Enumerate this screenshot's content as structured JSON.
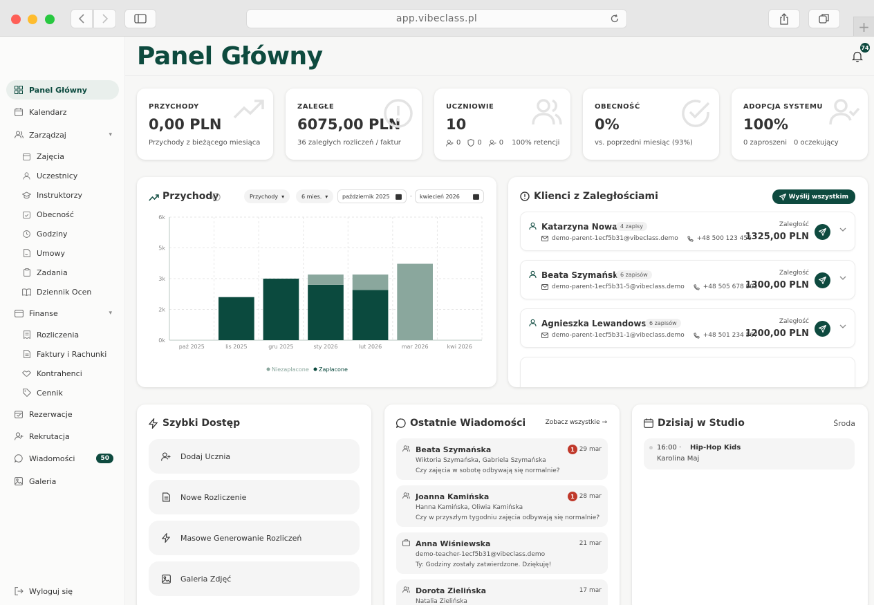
{
  "browser": {
    "url": "app.vibeclass.pl"
  },
  "sidebar": {
    "items": [
      {
        "label": "Panel Główny",
        "icon": "grid-icon"
      },
      {
        "label": "Kalendarz",
        "icon": "calendar-icon"
      },
      {
        "label": "Zarządzaj",
        "icon": "users-icon"
      },
      {
        "label": "Zajęcia",
        "icon": "calendar-icon"
      },
      {
        "label": "Uczestnicy",
        "icon": "user-icon"
      },
      {
        "label": "Instruktorzy",
        "icon": "graduation-cap-icon"
      },
      {
        "label": "Obecność",
        "icon": "calendar-check-icon"
      },
      {
        "label": "Godziny",
        "icon": "clock-icon"
      },
      {
        "label": "Umowy",
        "icon": "file-signature-icon"
      },
      {
        "label": "Zadania",
        "icon": "clipboard-icon"
      },
      {
        "label": "Dziennik Ocen",
        "icon": "book-icon"
      },
      {
        "label": "Finanse",
        "icon": "wallet-icon"
      },
      {
        "label": "Rozliczenia",
        "icon": "receipt-icon"
      },
      {
        "label": "Faktury i Rachunki",
        "icon": "file-icon"
      },
      {
        "label": "Kontrahenci",
        "icon": "handshake-icon"
      },
      {
        "label": "Cennik",
        "icon": "tag-icon"
      },
      {
        "label": "Rezerwacje",
        "icon": "calendar-icon"
      },
      {
        "label": "Rekrutacja",
        "icon": "user-plus-icon"
      },
      {
        "label": "Wiadomości",
        "icon": "message-icon",
        "badge": "50"
      },
      {
        "label": "Galeria",
        "icon": "image-icon"
      }
    ],
    "logout": "Wyloguj się"
  },
  "header": {
    "title": "Panel Główny",
    "notifications": "74"
  },
  "stats": [
    {
      "label": "PRZYCHODY",
      "value": "0,00 PLN",
      "sub": "Przychody z bieżącego miesiąca"
    },
    {
      "label": "ZALEGŁE",
      "value": "6075,00 PLN",
      "sub": "36 zaległych rozliczeń / faktur"
    },
    {
      "label": "UCZNIOWIE",
      "value": "10",
      "sub_parts": [
        "0",
        "0",
        "0",
        "100% retencji"
      ]
    },
    {
      "label": "OBECNOŚĆ",
      "value": "0%",
      "sub": "vs. poprzedni miesiąc (93%)"
    },
    {
      "label": "ADOPCJA SYSTEMU",
      "value": "100%",
      "sub_parts": [
        "0 zaproszeni",
        "0 oczekujący"
      ]
    }
  ],
  "revenue": {
    "title": "Przychody",
    "metric_select": "Przychody",
    "range_select": "6 mies.",
    "date_from": "październik 2025",
    "date_separator": "-",
    "date_to": "kwiecień 2026"
  },
  "chart_data": {
    "type": "bar",
    "stacked": true,
    "categories": [
      "paź 2025",
      "lis 2025",
      "gru 2025",
      "sty 2026",
      "lut 2026",
      "mar 2026",
      "kwi 2026"
    ],
    "series": [
      {
        "name": "Zapłacone",
        "color": "#0b4a3e",
        "values": [
          0,
          2100,
          3000,
          2700,
          2450,
          0,
          0
        ]
      },
      {
        "name": "Niezapłacone",
        "color": "#8aa79d",
        "values": [
          0,
          0,
          0,
          500,
          750,
          3725,
          0
        ]
      }
    ],
    "yticks": [
      "0k",
      "2k",
      "3k",
      "5k",
      "6k"
    ],
    "ytick_values": [
      0,
      1500,
      3000,
      4500,
      6000
    ],
    "ylim": [
      0,
      6000
    ],
    "legend": "bottom",
    "grid": true
  },
  "debtors": {
    "title": "Klienci z Zaległościami",
    "send_all": "Wyślij wszystkim",
    "debt_label": "Zaległość",
    "items": [
      {
        "name": "Katarzyna Nowak",
        "count": "4 zapisy",
        "email": "demo-parent-1ecf5b31@vibeclass.demo",
        "phone": "+48 500 123 456",
        "amount": "1325,00 PLN"
      },
      {
        "name": "Beata Szymańska",
        "count": "6 zapisów",
        "email": "demo-parent-1ecf5b31-5@vibeclass.demo",
        "phone": "+48 505 678 901",
        "amount": "1300,00 PLN"
      },
      {
        "name": "Agnieszka Lewandowska",
        "count": "6 zapisów",
        "email": "demo-parent-1ecf5b31-1@vibeclass.demo",
        "phone": "+48 501 234 567",
        "amount": "1200,00 PLN"
      }
    ]
  },
  "quick_access": {
    "title": "Szybki Dostęp",
    "items": [
      {
        "label": "Dodaj Ucznia",
        "icon": "user-plus-icon"
      },
      {
        "label": "Nowe Rozliczenie",
        "icon": "file-text-icon"
      },
      {
        "label": "Masowe Generowanie Rozliczeń",
        "icon": "lightning-icon"
      },
      {
        "label": "Galeria Zdjęć",
        "icon": "image-icon"
      }
    ]
  },
  "messages": {
    "title": "Ostatnie Wiadomości",
    "see_all": "Zobacz wszystkie →",
    "items": [
      {
        "name": "Beata Szymańska",
        "unread": "1",
        "date": "29 mar",
        "line1": "Wiktoria Szymańska, Gabriela Szymańska",
        "line2": "Czy zajęcia w sobotę odbywają się normalnie?"
      },
      {
        "name": "Joanna Kamińska",
        "unread": "1",
        "date": "28 mar",
        "line1": "Hanna Kamińska, Oliwia Kamińska",
        "line2": "Czy w przyszłym tygodniu zajęcia odbywają się normalnie?"
      },
      {
        "name": "Anna Wiśniewska",
        "unread": "",
        "date": "21 mar",
        "line1": "demo-teacher-1ecf5b31@vibeclass.demo",
        "line2": "Ty: Godziny zostały zatwierdzone. Dziękuję!"
      },
      {
        "name": "Dorota Zielińska",
        "unread": "",
        "date": "17 mar",
        "line1": "Natalia Zielińska",
        "line2": ""
      }
    ]
  },
  "today": {
    "title": "Dzisiaj w Studio",
    "day": "Środa",
    "event_time": "16:00 ·",
    "event_name": "Hip-Hop Kids",
    "event_person": "Karolina Maj"
  }
}
